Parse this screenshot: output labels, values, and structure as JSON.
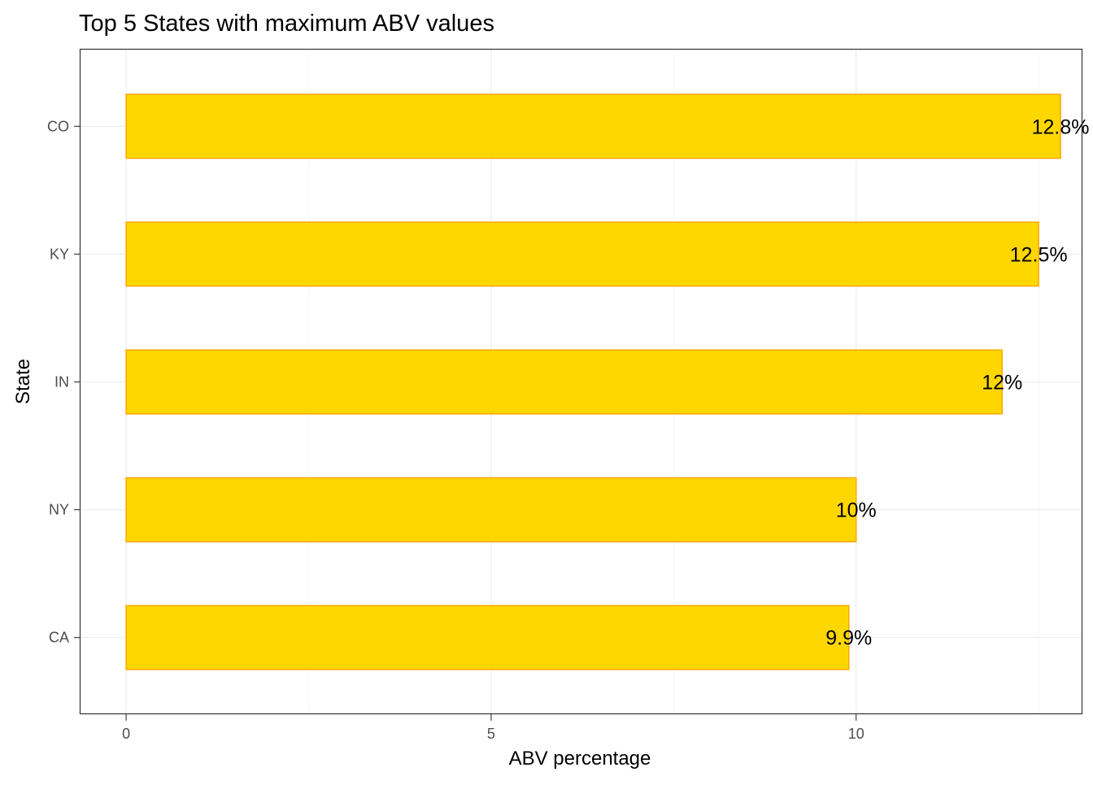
{
  "chart_data": {
    "type": "bar",
    "orientation": "horizontal",
    "title": "Top 5 States with maximum ABV values",
    "xlabel": "ABV percentage",
    "ylabel": "State",
    "categories": [
      "CO",
      "KY",
      "IN",
      "NY",
      "CA"
    ],
    "values": [
      12.8,
      12.5,
      12.0,
      10.0,
      9.9
    ],
    "value_labels": [
      "12.8%",
      "12.5%",
      "12%",
      "10%",
      "9.9%"
    ],
    "x_ticks": [
      0,
      5,
      10
    ],
    "x_tick_labels": [
      "0",
      "5",
      "10"
    ],
    "xlim": [
      -0.625,
      13.1
    ],
    "grid": true,
    "legend": "none",
    "bar_fill": "#FFD700",
    "bar_outline": "#FFA500"
  }
}
